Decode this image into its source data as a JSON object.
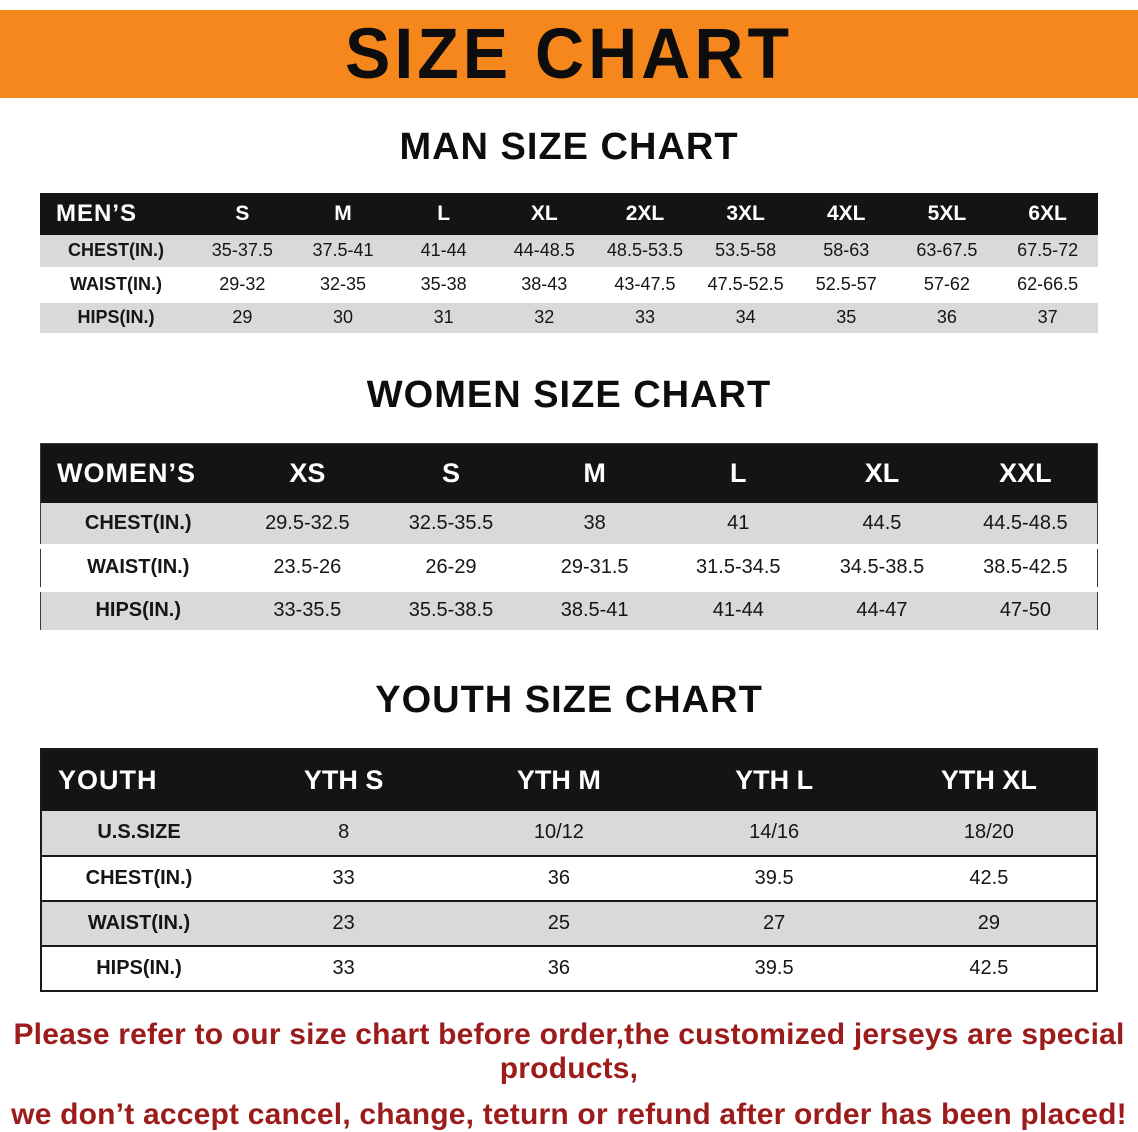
{
  "banner": {
    "title": "SIZE CHART",
    "bg_color": "#f6871d",
    "text_color": "#0d0d0d"
  },
  "sections": [
    {
      "id": "men",
      "title": "MAN SIZE CHART",
      "header": [
        "MEN’S",
        "S",
        "M",
        "L",
        "XL",
        "2XL",
        "3XL",
        "4XL",
        "5XL",
        "6XL"
      ],
      "rows": [
        [
          "CHEST(IN.)",
          "35-37.5",
          "37.5-41",
          "41-44",
          "44-48.5",
          "48.5-53.5",
          "53.5-58",
          "58-63",
          "63-67.5",
          "67.5-72"
        ],
        [
          "WAIST(IN.)",
          "29-32",
          "32-35",
          "35-38",
          "38-43",
          "43-47.5",
          "47.5-52.5",
          "52.5-57",
          "57-62",
          "62-66.5"
        ],
        [
          "HIPS(IN.)",
          "29",
          "30",
          "31",
          "32",
          "33",
          "34",
          "35",
          "36",
          "37"
        ]
      ]
    },
    {
      "id": "women",
      "title": "WOMEN SIZE CHART",
      "header": [
        "WOMEN’S",
        "XS",
        "S",
        "M",
        "L",
        "XL",
        "XXL"
      ],
      "rows": [
        [
          "CHEST(IN.)",
          "29.5-32.5",
          "32.5-35.5",
          "38",
          "41",
          "44.5",
          "44.5-48.5"
        ],
        [
          "WAIST(IN.)",
          "23.5-26",
          "26-29",
          "29-31.5",
          "31.5-34.5",
          "34.5-38.5",
          "38.5-42.5"
        ],
        [
          "HIPS(IN.)",
          "33-35.5",
          "35.5-38.5",
          "38.5-41",
          "41-44",
          "44-47",
          "47-50"
        ]
      ]
    },
    {
      "id": "youth",
      "title": "YOUTH SIZE CHART",
      "header": [
        "YOUTH",
        "YTH S",
        "YTH M",
        "YTH L",
        "YTH XL"
      ],
      "rows": [
        [
          "U.S.SIZE",
          "8",
          "10/12",
          "14/16",
          "18/20"
        ],
        [
          "CHEST(IN.)",
          "33",
          "36",
          "39.5",
          "42.5"
        ],
        [
          "WAIST(IN.)",
          "23",
          "25",
          "27",
          "29"
        ],
        [
          "HIPS(IN.)",
          "33",
          "36",
          "39.5",
          "42.5"
        ]
      ]
    }
  ],
  "footer": {
    "line1": "Please refer to our size chart before order,the customized jerseys are special products,",
    "line2": "we don’t accept cancel, change, teturn or refund after order has been placed!",
    "color": "#9c1b1b"
  },
  "row_colors": {
    "odd": "#d9d9d9",
    "even": "#ffffff",
    "header_bg": "#141414",
    "header_text": "#ffffff"
  }
}
